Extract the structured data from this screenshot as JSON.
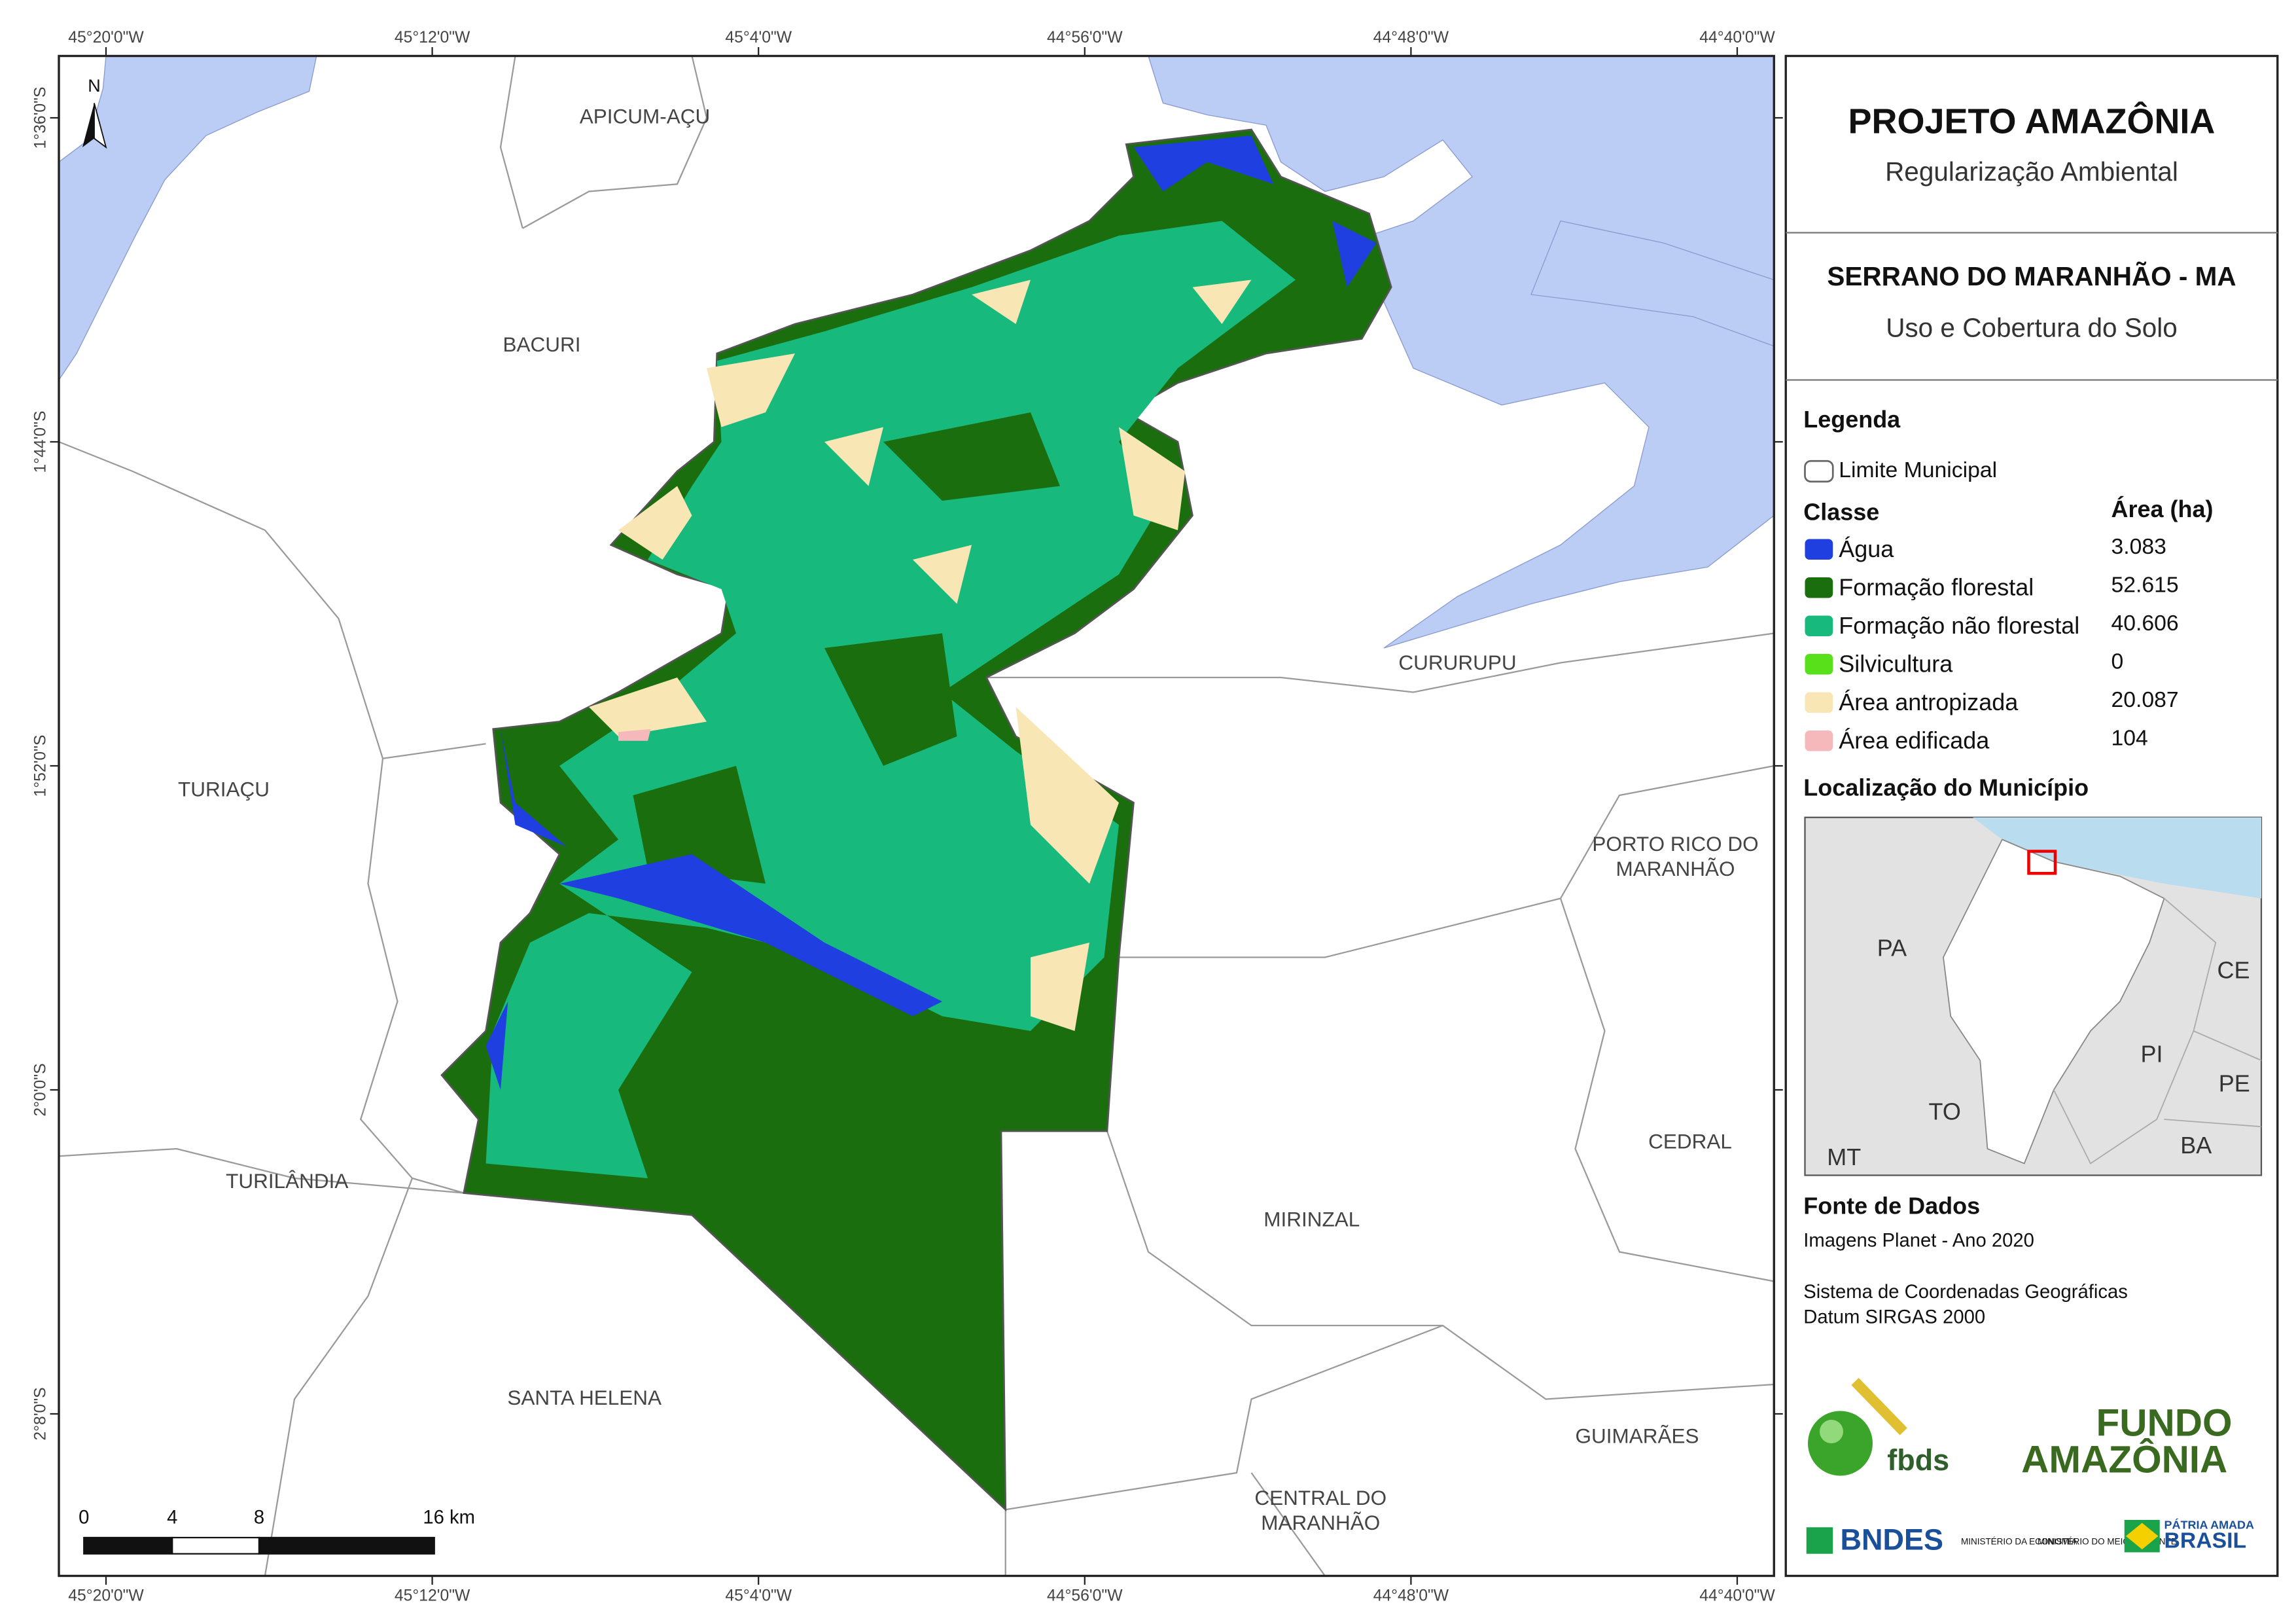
{
  "map": {
    "lon_ticks": [
      "45°20'0\"W",
      "45°12'0\"W",
      "45°4'0\"W",
      "44°56'0\"W",
      "44°48'0\"W",
      "44°40'0\"W"
    ],
    "lat_ticks": [
      "1°36'0\"S",
      "1°44'0\"S",
      "1°52'0\"S",
      "2°0'0\"S",
      "2°8'0\"S"
    ],
    "north": "N",
    "places": [
      [
        "APICUM-AÇU"
      ],
      [
        "BACURI"
      ],
      [
        "CURURUPU"
      ],
      [
        "TURIAÇU"
      ],
      [
        "PORTO RICO DO",
        "MARANHÃO"
      ],
      [
        "CEDRAL"
      ],
      [
        "TURILÂNDIA"
      ],
      [
        "MIRINZAL"
      ],
      [
        "SANTA HELENA"
      ],
      [
        "GUIMARÃES"
      ],
      [
        "CENTRAL DO",
        "MARANHÃO"
      ]
    ],
    "scale_labels": [
      "0",
      "4",
      "8",
      "16 km"
    ]
  },
  "panel": {
    "title": "PROJETO AMAZÔNIA",
    "subtitle": "Regularização Ambiental",
    "municipality": "SERRANO DO MARANHÃO - MA",
    "theme": "Uso e Cobertura do Solo",
    "legend": {
      "title": "Legenda",
      "boundary": "Limite Municipal",
      "class_header": "Classe",
      "area_header": "Área (ha)",
      "classes": [
        {
          "name": "Água",
          "color": "#1f3fe0",
          "area": "3.083"
        },
        {
          "name": "Formação florestal",
          "color": "#1b6e0d",
          "area": "52.615"
        },
        {
          "name": "Formação não florestal",
          "color": "#17b97c",
          "area": "40.606"
        },
        {
          "name": "Silvicultura",
          "color": "#58e01a",
          "area": "0"
        },
        {
          "name": "Área antropizada",
          "color": "#f8e6b4",
          "area": "20.087"
        },
        {
          "name": "Área edificada",
          "color": "#f6b9bb",
          "area": "104"
        }
      ]
    },
    "location": {
      "title": "Localização do Município",
      "states": [
        "PA",
        "CE",
        "PI",
        "TO",
        "PE",
        "MT",
        "BA"
      ]
    },
    "sources": {
      "title": "Fonte de Dados",
      "lines": [
        "Imagens Planet - Ano 2020",
        "Sistema de Coordenadas Geográficas",
        "Datum SIRGAS 2000"
      ]
    },
    "logos": {
      "fbds": "fbds",
      "fundo": "FUNDO",
      "amazonia": "AMAZÔNIA",
      "bndes": "BNDES",
      "min_economia": "MINISTÉRIO DA ECONOMIA",
      "min_ambiente": "MINISTÉRIO DO MEIO AMBIENTE",
      "patria": "PÁTRIA AMADA",
      "brasil": "BRASIL"
    }
  }
}
